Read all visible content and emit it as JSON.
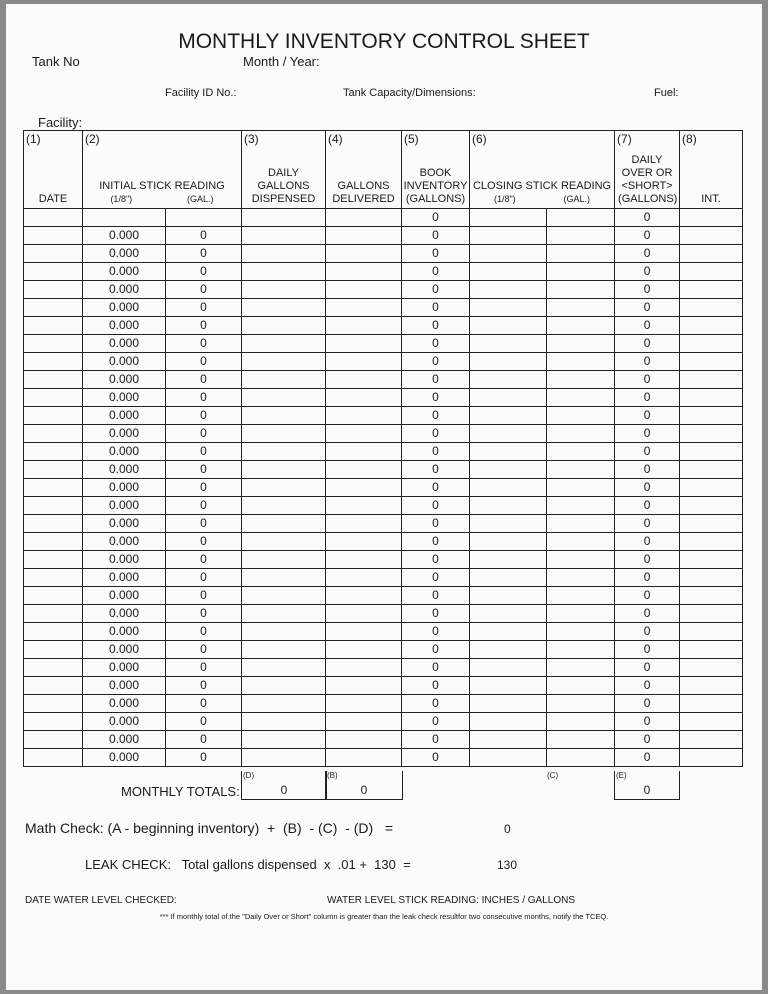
{
  "title": "MONTHLY INVENTORY CONTROL SHEET",
  "fields": {
    "tank_no": "Tank No",
    "month_year": "Month / Year:",
    "facility_id": "Facility ID No.:",
    "tank_capacity": "Tank Capacity/Dimensions:",
    "fuel": "Fuel:",
    "facility": "Facility:"
  },
  "columns": [
    {
      "num": "(1)",
      "label": "DATE"
    },
    {
      "num": "(2)",
      "label": "INITIAL STICK READING",
      "sub1": "(1/8\")",
      "sub2": "(GAL.)"
    },
    {
      "num": "(3)",
      "label": "DAILY GALLONS DISPENSED"
    },
    {
      "num": "(4)",
      "label": "GALLONS DELIVERED"
    },
    {
      "num": "(5)",
      "label": "BOOK INVENTORY (GALLONS)"
    },
    {
      "num": "(6)",
      "label": "CLOSING STICK READING",
      "sub1": "(1/8\")",
      "sub2": "(GAL.)"
    },
    {
      "num": "(7)",
      "label": "DAILY OVER OR <SHORT> (GALLONS)"
    },
    {
      "num": "(8)",
      "label": "INT."
    }
  ],
  "first_row": {
    "book_inventory": "0",
    "over_short": "0"
  },
  "rows": {
    "count": 30,
    "initial_stick": "0.000",
    "initial_gal": "0",
    "book_inventory": "0",
    "over_short": "0"
  },
  "totals": {
    "label": "MONTHLY TOTALS:",
    "d_label": "(D)",
    "d_value": "0",
    "b_label": "(B)",
    "b_value": "0",
    "c_label": "(C)",
    "e_label": "(E)",
    "e_value": "0"
  },
  "math_check": {
    "label": "Math Check: (A - beginning inventory)  +  (B)  - (C)  - (D)   =",
    "value": "0"
  },
  "leak_check": {
    "label": "LEAK CHECK:   Total gallons dispensed  x  .01 +  130  =",
    "value": "130"
  },
  "date_water": "DATE WATER LEVEL CHECKED:",
  "water_stick": "WATER LEVEL STICK READING: INCHES / GALLONS",
  "note": "*** If monthly total of the \"Daily Over or Short\" column is greater than the leak check resultfor two consecutive months, notify the TCEQ."
}
